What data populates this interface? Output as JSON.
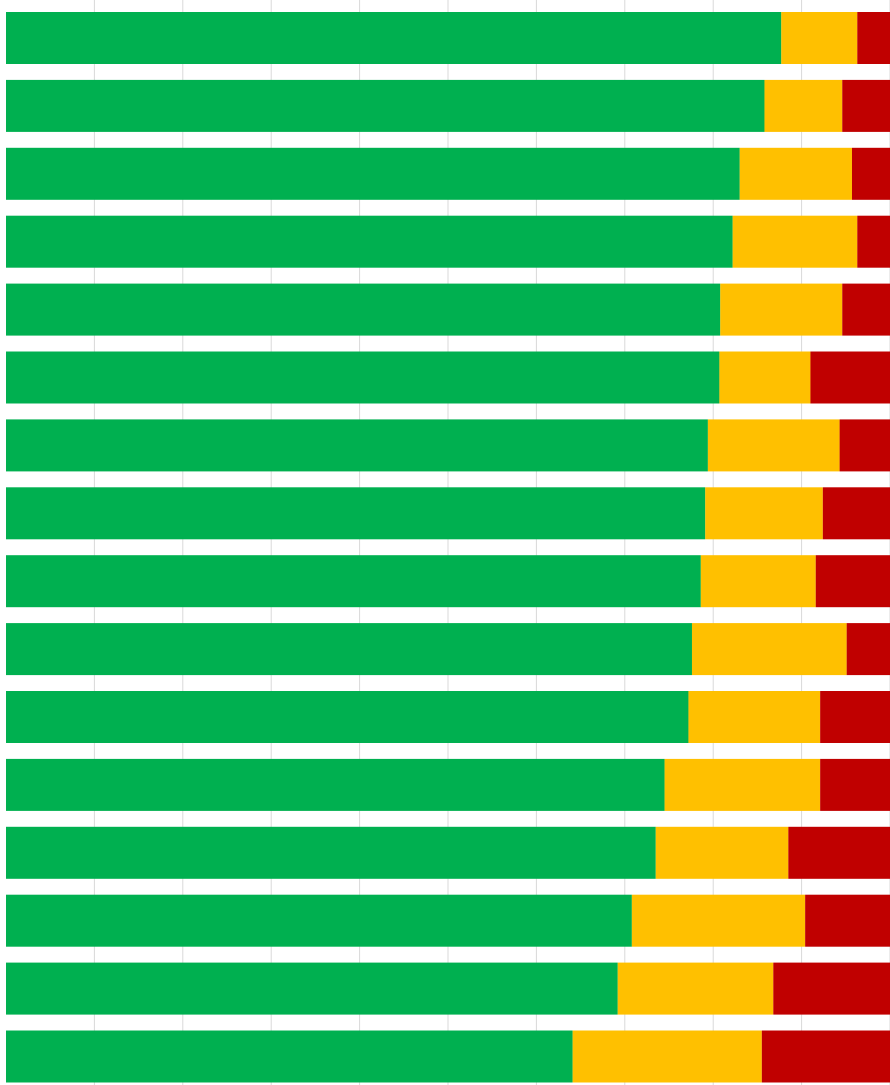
{
  "colors": {
    "green": "#00B050",
    "yellow": "#FFC000",
    "red": "#C00000",
    "grid": "#D9D9D9"
  },
  "chart_data": {
    "type": "bar",
    "orientation": "horizontal",
    "stacked": "percent",
    "grid": true,
    "legend": "none",
    "xlim": [
      0,
      1
    ],
    "series": [
      {
        "color": "#00B050",
        "values": [
          0.877,
          0.858,
          0.83,
          0.822,
          0.808,
          0.807,
          0.794,
          0.791,
          0.786,
          0.776,
          0.772,
          0.745,
          0.735,
          0.708,
          0.692,
          0.641
        ]
      },
      {
        "color": "#FFC000",
        "values": [
          0.086,
          0.088,
          0.127,
          0.141,
          0.138,
          0.103,
          0.149,
          0.133,
          0.13,
          0.175,
          0.149,
          0.176,
          0.15,
          0.196,
          0.176,
          0.214
        ]
      },
      {
        "color": "#C00000",
        "values": [
          0.037,
          0.054,
          0.043,
          0.037,
          0.054,
          0.09,
          0.057,
          0.076,
          0.084,
          0.049,
          0.079,
          0.079,
          0.115,
          0.096,
          0.132,
          0.145
        ]
      }
    ]
  }
}
